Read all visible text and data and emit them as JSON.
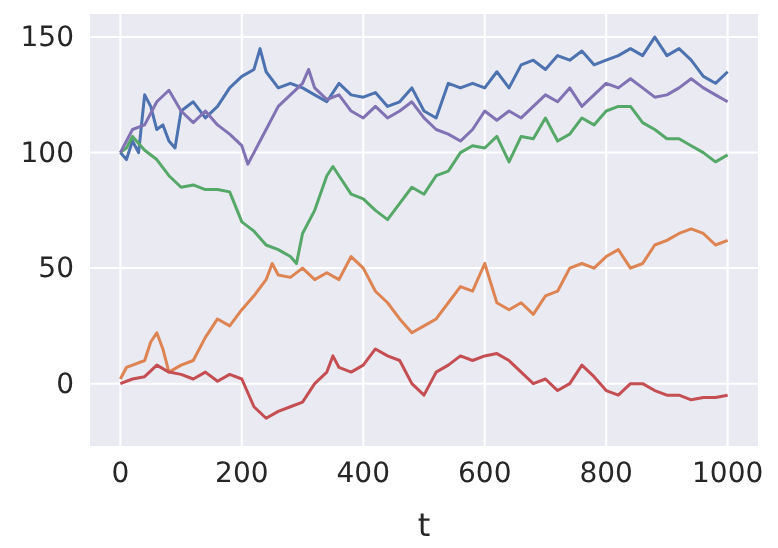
{
  "chart_data": {
    "type": "line",
    "xlabel": "t",
    "xlim": [
      -50,
      1050
    ],
    "ylim": [
      -27,
      160
    ],
    "xticks": [
      0,
      200,
      400,
      600,
      800,
      1000
    ],
    "yticks": [
      0,
      50,
      100,
      150
    ],
    "grid": true,
    "line_style": "solid",
    "series": [
      {
        "color": "#4c72b0",
        "x": [
          0,
          10,
          20,
          30,
          40,
          50,
          60,
          70,
          80,
          90,
          100,
          120,
          140,
          160,
          180,
          200,
          220,
          230,
          240,
          260,
          280,
          300,
          320,
          340,
          360,
          380,
          400,
          420,
          440,
          460,
          480,
          500,
          520,
          540,
          560,
          580,
          600,
          620,
          640,
          660,
          680,
          700,
          720,
          740,
          760,
          780,
          800,
          820,
          840,
          860,
          880,
          900,
          920,
          940,
          960,
          980,
          1000
        ],
        "values": [
          100,
          97,
          105,
          100,
          125,
          120,
          110,
          112,
          105,
          102,
          118,
          122,
          115,
          120,
          128,
          133,
          136,
          145,
          135,
          128,
          130,
          128,
          125,
          122,
          130,
          125,
          124,
          126,
          120,
          122,
          128,
          118,
          115,
          130,
          128,
          130,
          128,
          135,
          128,
          138,
          140,
          136,
          142,
          140,
          144,
          138,
          140,
          142,
          145,
          142,
          150,
          142,
          145,
          140,
          133,
          130,
          135
        ]
      },
      {
        "color": "#dd8452",
        "x": [
          0,
          10,
          20,
          40,
          50,
          60,
          70,
          80,
          100,
          120,
          140,
          160,
          180,
          200,
          220,
          240,
          250,
          260,
          280,
          300,
          320,
          340,
          360,
          380,
          400,
          420,
          440,
          460,
          480,
          500,
          520,
          540,
          560,
          580,
          600,
          620,
          640,
          660,
          680,
          700,
          720,
          740,
          760,
          780,
          800,
          820,
          840,
          860,
          880,
          900,
          920,
          940,
          960,
          980,
          1000
        ],
        "values": [
          2,
          7,
          8,
          10,
          18,
          22,
          15,
          5,
          8,
          10,
          20,
          28,
          25,
          32,
          38,
          45,
          52,
          47,
          46,
          50,
          45,
          48,
          45,
          55,
          50,
          40,
          35,
          28,
          22,
          25,
          28,
          35,
          42,
          40,
          52,
          35,
          32,
          35,
          30,
          38,
          40,
          50,
          52,
          50,
          55,
          58,
          50,
          52,
          60,
          62,
          65,
          67,
          65,
          60,
          62
        ]
      },
      {
        "color": "#55a868",
        "x": [
          0,
          10,
          20,
          40,
          60,
          80,
          100,
          120,
          140,
          160,
          180,
          200,
          220,
          240,
          260,
          280,
          290,
          300,
          320,
          340,
          350,
          360,
          380,
          400,
          420,
          440,
          460,
          480,
          500,
          520,
          540,
          560,
          580,
          600,
          620,
          640,
          660,
          680,
          700,
          720,
          740,
          760,
          780,
          800,
          820,
          840,
          860,
          880,
          900,
          920,
          940,
          960,
          980,
          1000
        ],
        "values": [
          100,
          102,
          107,
          101,
          97,
          90,
          85,
          86,
          84,
          84,
          83,
          70,
          66,
          60,
          58,
          55,
          52,
          65,
          75,
          90,
          94,
          90,
          82,
          80,
          75,
          71,
          78,
          85,
          82,
          90,
          92,
          100,
          103,
          102,
          107,
          96,
          107,
          106,
          115,
          105,
          108,
          115,
          112,
          118,
          120,
          120,
          113,
          110,
          106,
          106,
          103,
          100,
          96,
          99
        ]
      },
      {
        "color": "#c44e52",
        "x": [
          0,
          20,
          40,
          60,
          80,
          100,
          120,
          140,
          160,
          180,
          200,
          220,
          240,
          260,
          280,
          300,
          320,
          340,
          350,
          360,
          380,
          400,
          420,
          440,
          460,
          480,
          500,
          520,
          540,
          560,
          580,
          600,
          620,
          640,
          660,
          680,
          700,
          720,
          740,
          760,
          780,
          800,
          820,
          840,
          860,
          880,
          900,
          920,
          940,
          960,
          980,
          1000
        ],
        "values": [
          0,
          2,
          3,
          8,
          5,
          4,
          2,
          5,
          1,
          4,
          2,
          -10,
          -15,
          -12,
          -10,
          -8,
          0,
          5,
          12,
          7,
          5,
          8,
          15,
          12,
          10,
          0,
          -5,
          5,
          8,
          12,
          10,
          12,
          13,
          10,
          5,
          0,
          2,
          -3,
          0,
          8,
          3,
          -3,
          -5,
          0,
          0,
          -3,
          -5,
          -5,
          -7,
          -6,
          -6,
          -5
        ]
      },
      {
        "color": "#8172b3",
        "x": [
          0,
          20,
          40,
          60,
          80,
          100,
          120,
          140,
          160,
          180,
          200,
          210,
          220,
          240,
          260,
          280,
          300,
          310,
          320,
          340,
          360,
          380,
          400,
          420,
          440,
          460,
          480,
          500,
          520,
          540,
          560,
          580,
          600,
          620,
          640,
          660,
          680,
          700,
          720,
          740,
          760,
          780,
          800,
          820,
          840,
          860,
          880,
          900,
          920,
          940,
          960,
          980,
          1000
        ],
        "values": [
          100,
          110,
          112,
          122,
          127,
          118,
          113,
          118,
          112,
          108,
          103,
          95,
          100,
          110,
          120,
          125,
          130,
          136,
          128,
          123,
          125,
          118,
          115,
          120,
          115,
          118,
          122,
          115,
          110,
          108,
          105,
          110,
          118,
          114,
          118,
          115,
          120,
          125,
          122,
          128,
          120,
          125,
          130,
          128,
          132,
          128,
          124,
          125,
          128,
          132,
          128,
          125,
          122
        ]
      }
    ]
  }
}
